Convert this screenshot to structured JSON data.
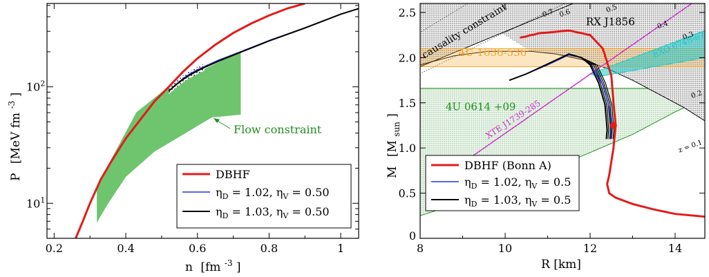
{
  "chart_data": [
    {
      "type": "line",
      "xlabel_main": "n",
      "xlabel_unit": "[fm",
      "xlabel_exp": "-3",
      "xlabel_close": "]",
      "ylabel_main": "P",
      "ylabel_unit": "[MeV fm",
      "ylabel_exp": "-3",
      "ylabel_close": "]",
      "xlim": [
        0.18,
        1.05
      ],
      "ylim": [
        5,
        520
      ],
      "yscale": "log",
      "x_ticks": [
        {
          "value": 0.2,
          "label": "0.2"
        },
        {
          "value": 0.4,
          "label": "0.4"
        },
        {
          "value": 0.6,
          "label": "0.6"
        },
        {
          "value": 0.8,
          "label": "0.8"
        },
        {
          "value": 1.0,
          "label": "1"
        }
      ],
      "y_ticks": [
        {
          "value": 10,
          "base": "10",
          "exp": "1"
        },
        {
          "value": 100,
          "base": "10",
          "exp": "2"
        }
      ],
      "annotation": "Flow constraint",
      "annotation_color": "#1f8f1f",
      "flow_region": {
        "color": "#6ec56e",
        "polygon": [
          [
            0.32,
            7
          ],
          [
            0.32,
            14
          ],
          [
            0.43,
            60
          ],
          [
            0.52,
            100
          ],
          [
            0.72,
            200
          ],
          [
            0.72,
            58
          ],
          [
            0.64,
            55
          ],
          [
            0.48,
            28
          ],
          [
            0.4,
            17
          ],
          [
            0.35,
            10
          ]
        ]
      },
      "series": [
        {
          "name": "DBHF",
          "color": "#e31b1b",
          "width": 3,
          "x": [
            0.26,
            0.28,
            0.3,
            0.33,
            0.36,
            0.4,
            0.44,
            0.48,
            0.52,
            0.56,
            0.6,
            0.65,
            0.7,
            0.75,
            0.8,
            0.85,
            0.9
          ],
          "y": [
            5,
            7,
            10,
            16,
            23,
            36,
            52,
            75,
            100,
            135,
            175,
            230,
            290,
            350,
            410,
            470,
            520
          ]
        },
        {
          "name": "ηD = 1.02, ηV = 0.50",
          "label_d": "1.02",
          "label_v": "0.50",
          "color": "#2233dd",
          "width": 1.5,
          "x": [
            0.52,
            0.54,
            0.56,
            0.58,
            0.6,
            0.62,
            0.66,
            0.72,
            0.8,
            0.9,
            1.0,
            1.05
          ],
          "y": [
            92,
            105,
            118,
            130,
            140,
            150,
            170,
            200,
            250,
            320,
            420,
            470
          ]
        },
        {
          "name": "ηD = 1.03, ηV = 0.50",
          "label_d": "1.03",
          "label_v": "0.50",
          "color": "#000000",
          "width": 2,
          "x": [
            0.52,
            0.54,
            0.56,
            0.58,
            0.6,
            0.62,
            0.66,
            0.72,
            0.8,
            0.9,
            1.0,
            1.05
          ],
          "y": [
            92,
            104,
            116,
            127,
            137,
            147,
            167,
            198,
            248,
            320,
            420,
            470
          ]
        }
      ],
      "legend_position": "bottom-right"
    },
    {
      "type": "line",
      "xlabel": "R [km]",
      "ylabel_main": "M",
      "ylabel_unit": "[M",
      "ylabel_sub": "sun",
      "ylabel_close": "]",
      "xlim": [
        8,
        14.7
      ],
      "ylim": [
        0,
        2.6
      ],
      "x_ticks": [
        {
          "value": 8,
          "label": "8"
        },
        {
          "value": 10,
          "label": "10"
        },
        {
          "value": 12,
          "label": "12"
        },
        {
          "value": 14,
          "label": "14"
        }
      ],
      "y_ticks": [
        {
          "value": 0.5,
          "label": "0.5"
        },
        {
          "value": 1.0,
          "label": "1.0"
        },
        {
          "value": 1.5,
          "label": "1.5"
        },
        {
          "value": 2.0,
          "label": "2.0"
        },
        {
          "value": 2.5,
          "label": "2.5"
        }
      ],
      "y_origin_label": "0",
      "bands": [
        {
          "label": "4U 1636-536",
          "ymin": 1.9,
          "ymax": 2.1,
          "color": "#f5a623",
          "label_x": 8.9,
          "label_y": 2.02
        },
        {
          "label": "4U 0614 +09",
          "ymin": 0,
          "ymax": 1.66,
          "color": "#1f8f1f",
          "label_x": 8.6,
          "label_y": 1.42
        },
        {
          "label": "EXO 0748-676",
          "color": "#22c7c7",
          "label_x": 13.5,
          "label_y": 2.0
        },
        {
          "label": "XTE J1739-285",
          "color": "#cc33cc",
          "label_x": 9.6,
          "label_y": 1.1
        }
      ],
      "labels": {
        "causality": "causality constraint",
        "rxj": "RX J1856",
        "z_values": [
          "0.7",
          "0.6",
          "0.5",
          "0.4",
          "0.3",
          "0.2",
          "z = 0.1"
        ]
      },
      "series": [
        {
          "name": "DBHF (Bonn A)",
          "color": "#e31b1b",
          "width": 3,
          "x": [
            10.35,
            10.8,
            11.5,
            12.0,
            12.3,
            12.5,
            12.55,
            12.6,
            12.55,
            12.5,
            12.45,
            12.4,
            12.45,
            12.6,
            13.0,
            13.5,
            14.0,
            14.7
          ],
          "y": [
            2.22,
            2.27,
            2.3,
            2.25,
            2.1,
            1.8,
            1.5,
            1.25,
            1.0,
            0.85,
            0.7,
            0.6,
            0.5,
            0.45,
            0.38,
            0.32,
            0.27,
            0.24
          ]
        },
        {
          "name": "ηD = 1.02, ηV = 0.5",
          "label_d": "1.02",
          "label_v": "0.5",
          "color": "#2233dd",
          "width": 1.5,
          "x": [
            10.1,
            10.5,
            11.0,
            11.5,
            11.8,
            12.05,
            12.3,
            12.45,
            12.5,
            12.48
          ],
          "y": [
            1.75,
            1.82,
            1.92,
            2.03,
            2.0,
            1.9,
            1.7,
            1.45,
            1.2,
            1.1
          ]
        },
        {
          "name": "ηD = 1.03, ηV = 0.5",
          "label_d": "1.03",
          "label_v": "0.5",
          "color": "#000000",
          "width": 2,
          "x": [
            10.1,
            10.5,
            11.0,
            11.5,
            11.8,
            12.0,
            12.2,
            12.35,
            12.4,
            12.38
          ],
          "y": [
            1.75,
            1.82,
            1.93,
            2.04,
            2.0,
            1.92,
            1.72,
            1.48,
            1.2,
            1.1
          ]
        }
      ],
      "marker": {
        "x": 12.55,
        "y": 1.25,
        "color": "#e31b1b"
      },
      "legend_position": "bottom-left"
    }
  ]
}
